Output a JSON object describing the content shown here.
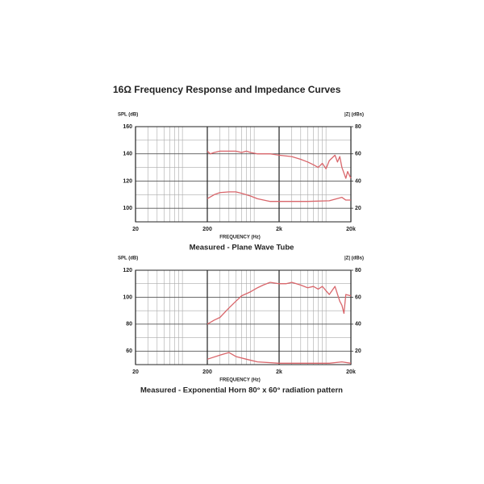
{
  "title": "16Ω Frequency Response and Impedance Curves",
  "chart_data": [
    {
      "type": "line",
      "ylabel": "SPL (dB)",
      "y2label": "|Z| (dBs)",
      "xlabel": "FREQUENCY (Hz)",
      "caption": "Measured - Plane Wave Tube",
      "log_x": true,
      "grid": true,
      "xlim": [
        20,
        20000
      ],
      "xticks": [
        20,
        200,
        {
          "value": 2000,
          "label": "2k"
        },
        {
          "value": 20000,
          "label": "20k"
        }
      ],
      "ylim": [
        90,
        160
      ],
      "yticks": [
        100,
        120,
        140,
        160
      ],
      "y2lim": [
        10,
        80
      ],
      "y2ticks": [
        20,
        40,
        60,
        80
      ],
      "series": [
        {
          "color": "#d9666b",
          "x": [
            200,
            220,
            250,
            300,
            400,
            500,
            600,
            700,
            800,
            1000,
            1500,
            2000,
            3000,
            4000,
            5000,
            6000,
            7000,
            8000,
            9000,
            10000,
            12000,
            13000,
            14000,
            15000,
            17000,
            18000,
            20000
          ],
          "values": [
            142,
            140,
            141,
            142,
            142,
            142,
            141,
            142,
            141,
            140,
            140,
            139,
            138,
            136,
            134,
            132,
            130,
            133,
            129,
            135,
            139,
            134,
            138,
            130,
            122,
            127,
            122
          ]
        },
        {
          "color": "#d9666b",
          "axis": "y2",
          "x": [
            200,
            250,
            300,
            400,
            500,
            600,
            800,
            1000,
            1500,
            2000,
            5000,
            10000,
            15000,
            17000,
            20000
          ],
          "values": [
            27,
            30,
            31.5,
            32,
            32,
            31,
            29,
            27,
            25,
            25,
            25,
            25.5,
            28,
            26,
            26
          ]
        }
      ]
    },
    {
      "type": "line",
      "ylabel": "SPL (dB)",
      "y2label": "|Z| (dBs)",
      "xlabel": "FREQUENCY (Hz)",
      "caption": "Measured - Exponential Horn 80° x 60° radiation pattern",
      "log_x": true,
      "grid": true,
      "xlim": [
        20,
        20000
      ],
      "xticks": [
        20,
        200,
        {
          "value": 2000,
          "label": "2k"
        },
        {
          "value": 20000,
          "label": "20k"
        }
      ],
      "ylim": [
        50,
        120
      ],
      "yticks": [
        60,
        80,
        100,
        120
      ],
      "y2lim": [
        10,
        80
      ],
      "y2ticks": [
        20,
        40,
        60,
        80
      ],
      "series": [
        {
          "color": "#d9666b",
          "x": [
            200,
            250,
            300,
            400,
            500,
            600,
            800,
            1000,
            1200,
            1500,
            2000,
            2500,
            3000,
            4000,
            5000,
            6000,
            7000,
            8000,
            10000,
            12000,
            14000,
            15000,
            16000,
            17000,
            20000
          ],
          "values": [
            80,
            83,
            85,
            92,
            97,
            101,
            104,
            107,
            109,
            111,
            110,
            110,
            111,
            109,
            107,
            108,
            106,
            108,
            102,
            108,
            97,
            94,
            88,
            102,
            101
          ]
        },
        {
          "color": "#d9666b",
          "axis": "y2",
          "x": [
            200,
            300,
            400,
            500,
            700,
            1000,
            2000,
            5000,
            10000,
            15000,
            20000
          ],
          "values": [
            14,
            17,
            19,
            16,
            14,
            12,
            11,
            11,
            11,
            12,
            11
          ]
        }
      ]
    }
  ]
}
